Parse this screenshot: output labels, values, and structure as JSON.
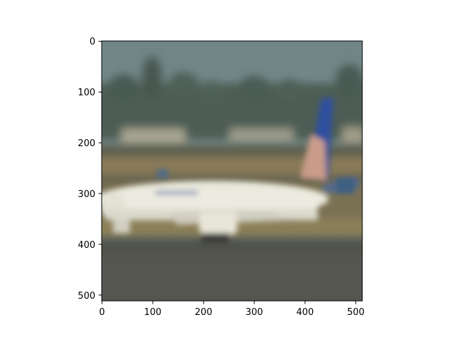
{
  "image": {
    "subject": "passenger-airplane",
    "tail_colors": [
      "#2f4f9f",
      "#d9a27a"
    ]
  },
  "axes": {
    "x_ticks": [
      "0",
      "100",
      "200",
      "300",
      "400",
      "500"
    ],
    "y_ticks": [
      "0",
      "100",
      "200",
      "300",
      "400",
      "500"
    ],
    "xlim": [
      0,
      512
    ],
    "ylim": [
      512,
      0
    ]
  }
}
